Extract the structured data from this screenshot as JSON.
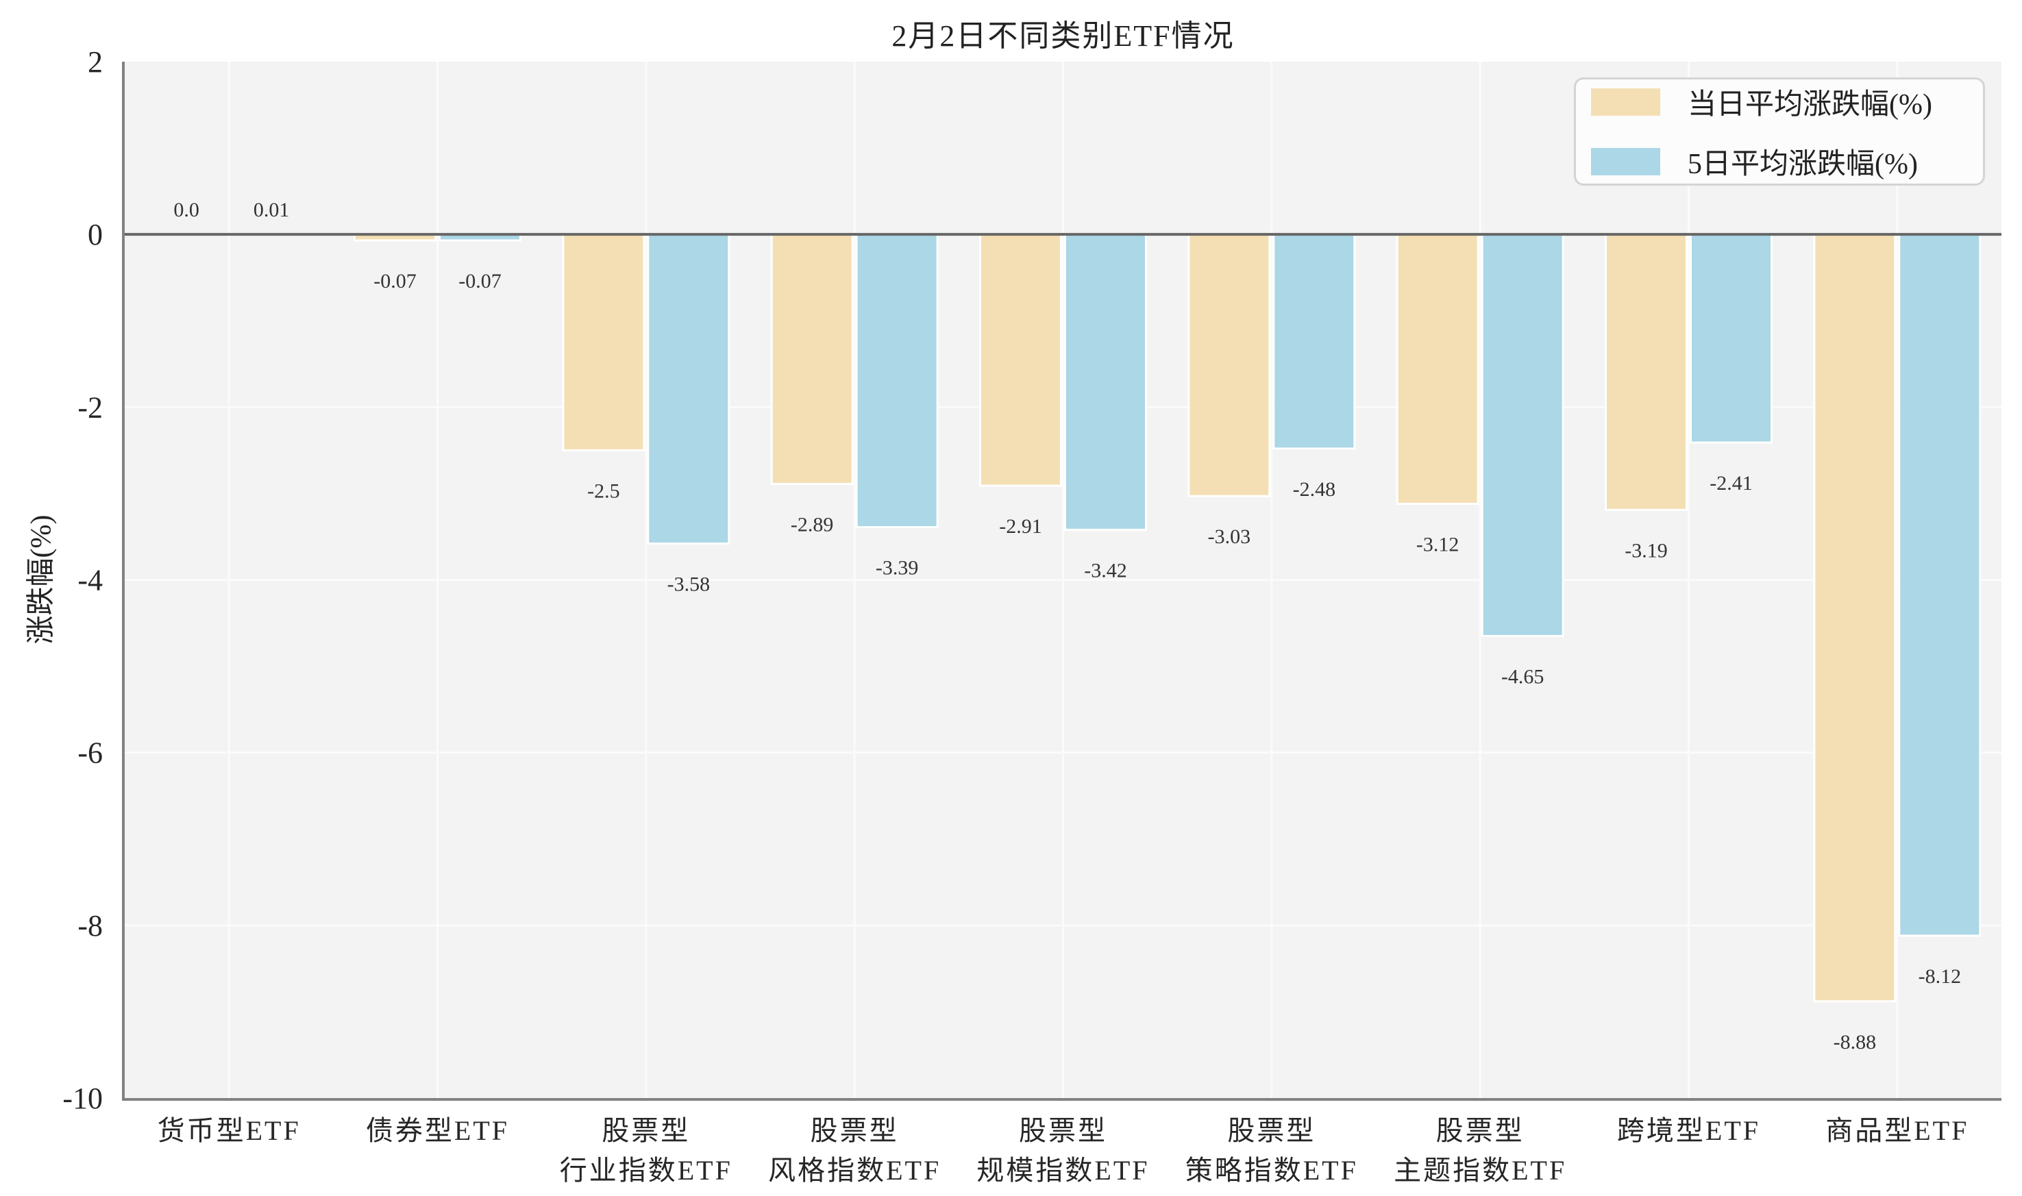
{
  "chart_data": {
    "type": "bar",
    "title": "2月2日不同类别ETF情况",
    "ylabel": "涨跌幅(%)",
    "xlabel": "",
    "categories": [
      "货币型ETF",
      "债券型ETF",
      "股票型\n行业指数ETF",
      "股票型\n风格指数ETF",
      "股票型\n规模指数ETF",
      "股票型\n策略指数ETF",
      "股票型\n主题指数ETF",
      "跨境型ETF",
      "商品型ETF"
    ],
    "series": [
      {
        "name": "当日平均涨跌幅(%)",
        "color": "#F4DFB4",
        "values": [
          0.0,
          -0.07,
          -2.5,
          -2.89,
          -2.91,
          -3.03,
          -3.12,
          -3.19,
          -8.88
        ],
        "labels": [
          "0.0",
          "-0.07",
          "-2.5",
          "-2.89",
          "-2.91",
          "-3.03",
          "-3.12",
          "-3.19",
          "-8.88"
        ]
      },
      {
        "name": "5日平均涨跌幅(%)",
        "color": "#ABD7E6",
        "values": [
          0.01,
          -0.07,
          -3.58,
          -3.39,
          -3.42,
          -2.48,
          -4.65,
          -2.41,
          -8.12
        ],
        "labels": [
          "0.01",
          "-0.07",
          "-3.58",
          "-3.39",
          "-3.42",
          "-2.48",
          "-4.65",
          "-2.41",
          "-8.12"
        ]
      }
    ],
    "ylim": [
      -10,
      2
    ],
    "yticks": [
      2,
      0,
      -2,
      -4,
      -6,
      -8,
      -10
    ],
    "grid": true,
    "legend_position": "upper right",
    "colors": {
      "figure_bg": "#FFFFFF",
      "plot_bg": "#F3F3F4",
      "grid_line": "#FBFBFB",
      "spine": "#828282",
      "zero_line": "#666666",
      "bar_edge": "#FFFFFF",
      "text": "#262626",
      "data_label": "#333333",
      "legend_bg": "#FCFCFC",
      "legend_border": "#D4D4D4"
    }
  }
}
